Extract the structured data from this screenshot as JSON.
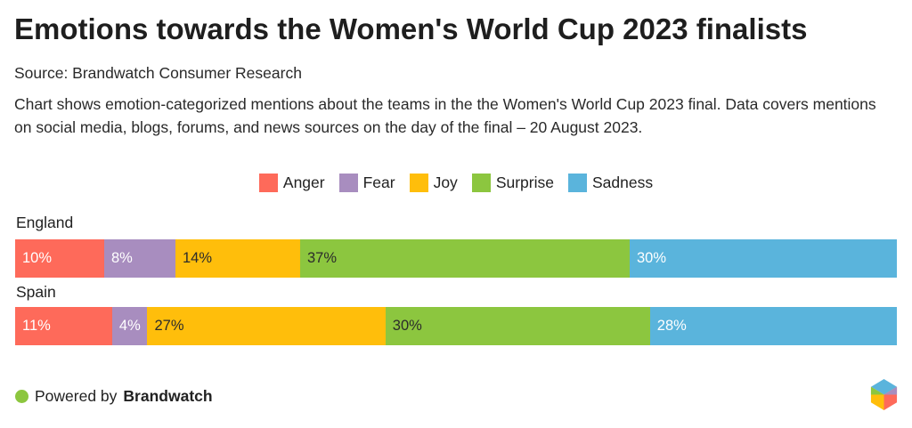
{
  "title": "Emotions towards the Women's World Cup 2023 finalists",
  "source": "Source: Brandwatch Consumer Research",
  "description": "Chart shows emotion-categorized mentions about the teams in the the Women's World Cup 2023 final. Data covers mentions on social media, blogs, forums, and news sources on the day of the final – 20 August 2023.",
  "footer": {
    "powered_by": "Powered by",
    "brand": "Brandwatch"
  },
  "colors": {
    "Anger": "#fe6a5a",
    "Fear": "#a88dbf",
    "Joy": "#ffbe0b",
    "Surprise": "#8cc63f",
    "Sadness": "#5ab4dc",
    "label_light": "#ffffff",
    "label_dark": "#2b2b2b"
  },
  "chart_data": {
    "type": "bar",
    "orientation": "horizontal",
    "stacked": true,
    "normalized": true,
    "title": "Emotions towards the Women's World Cup 2023 finalists",
    "categories": [
      "England",
      "Spain"
    ],
    "series": [
      {
        "name": "Anger",
        "values": [
          10,
          11
        ],
        "labels": [
          "10%",
          "11%"
        ]
      },
      {
        "name": "Fear",
        "values": [
          8,
          4
        ],
        "labels": [
          "8%",
          "4%"
        ]
      },
      {
        "name": "Joy",
        "values": [
          14,
          27
        ],
        "labels": [
          "14%",
          "27%"
        ]
      },
      {
        "name": "Surprise",
        "values": [
          37,
          30
        ],
        "labels": [
          "37%",
          "30%"
        ]
      },
      {
        "name": "Sadness",
        "values": [
          30,
          28
        ],
        "labels": [
          "30%",
          "28%"
        ]
      }
    ],
    "legend": [
      "Anger",
      "Fear",
      "Joy",
      "Surprise",
      "Sadness"
    ],
    "legend_position": "top-center",
    "xlabel": "",
    "ylabel": ""
  }
}
